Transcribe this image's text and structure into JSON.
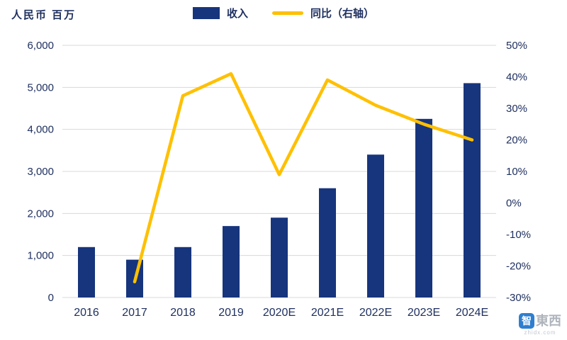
{
  "chart_data": {
    "type": "bar+line",
    "title": "",
    "unit_label": "人民币 百万",
    "categories": [
      "2016",
      "2017",
      "2018",
      "2019",
      "2020E",
      "2021E",
      "2022E",
      "2023E",
      "2024E"
    ],
    "series": [
      {
        "name": "收入",
        "type": "bar",
        "axis": "left",
        "values": [
          1200,
          900,
          1200,
          1700,
          1900,
          2600,
          3400,
          4250,
          5100
        ]
      },
      {
        "name": "同比（右轴）",
        "type": "line",
        "axis": "right",
        "values": [
          null,
          -25,
          34,
          41,
          9,
          39,
          31,
          25,
          20
        ]
      }
    ],
    "left_axis": {
      "min": 0,
      "max": 6000,
      "step": 1000,
      "tick_labels": [
        "0",
        "1,000",
        "2,000",
        "3,000",
        "4,000",
        "5,000",
        "6,000"
      ]
    },
    "right_axis": {
      "min": -30,
      "max": 50,
      "step": 10,
      "tick_labels": [
        "-30%",
        "-20%",
        "-10%",
        "0%",
        "10%",
        "20%",
        "30%",
        "40%",
        "50%"
      ]
    },
    "grid": true,
    "legend_position": "top-center",
    "colors": {
      "bar": "#17357d",
      "line": "#ffc000",
      "grid": "#d8d8d8",
      "text": "#1f3060"
    }
  },
  "legend": [
    {
      "label": "收入"
    },
    {
      "label": "同比（右轴）"
    }
  ],
  "watermark": {
    "icon_char": "智",
    "brand": "東西",
    "domain": "zhidx.com"
  }
}
